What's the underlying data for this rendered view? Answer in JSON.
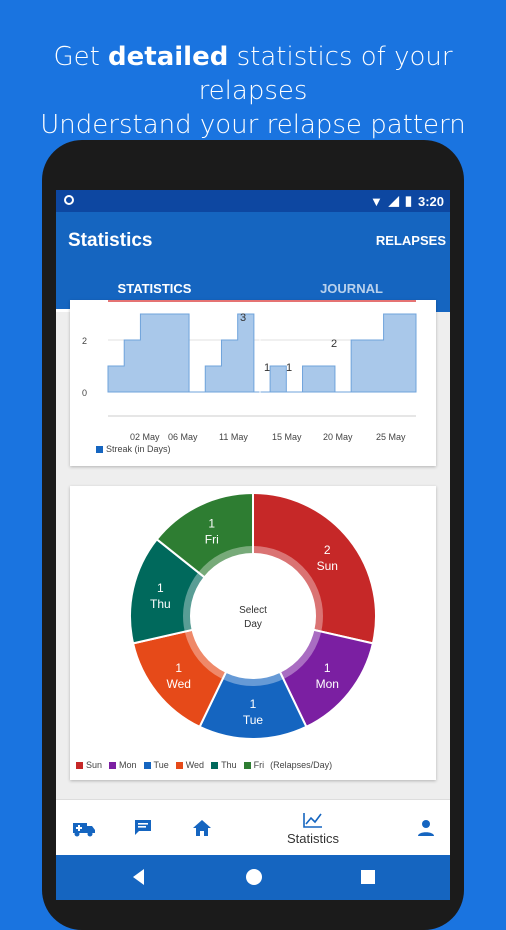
{
  "promo": {
    "line1_pre": "Get ",
    "line1_bold": "detailed",
    "line1_post": " statistics of your relapses",
    "line2": "Understand your relapse pattern"
  },
  "status": {
    "time": "3:20"
  },
  "appbar": {
    "title": "Statistics",
    "action": "RELAPSES"
  },
  "tabs": [
    {
      "label": "STATISTICS",
      "active": true
    },
    {
      "label": "JOURNAL",
      "active": false
    }
  ],
  "streak_chart": {
    "y_ticks": [
      "2",
      "0"
    ],
    "x_ticks": [
      "02 May",
      "06 May",
      "11 May",
      "15 May",
      "20 May",
      "25 May"
    ],
    "point_labels": [
      "3",
      "1",
      "1",
      "2"
    ],
    "legend": "Streak (in Days)",
    "color": "#a9c8ea"
  },
  "donut": {
    "center": [
      "Select",
      "Day"
    ],
    "slices": [
      {
        "day": "Sun",
        "count": "2",
        "color": "#c62828"
      },
      {
        "day": "Mon",
        "count": "1",
        "color": "#7b1fa2"
      },
      {
        "day": "Tue",
        "count": "1",
        "color": "#1565c0"
      },
      {
        "day": "Wed",
        "count": "1",
        "color": "#e64a19"
      },
      {
        "day": "Thu",
        "count": "1",
        "color": "#00695c"
      },
      {
        "day": "Fri",
        "count": "1",
        "color": "#2e7d32"
      }
    ],
    "legend_suffix": "(Relapses/Day)"
  },
  "bottom_nav": {
    "active_label": "Statistics"
  },
  "chart_data": [
    {
      "type": "area",
      "ylabel": "",
      "series": [
        {
          "name": "Streak (in Days)",
          "values": [
            1,
            2,
            3,
            3,
            3,
            0,
            1,
            2,
            3,
            0,
            1,
            0,
            1,
            1,
            0,
            2,
            2,
            3,
            3
          ]
        }
      ],
      "x_ticks": [
        "02 May",
        "06 May",
        "11 May",
        "15 May",
        "20 May",
        "25 May"
      ],
      "ylim": [
        0,
        4
      ]
    },
    {
      "type": "pie",
      "categories": [
        "Sun",
        "Mon",
        "Tue",
        "Wed",
        "Thu",
        "Fri"
      ],
      "values": [
        2,
        1,
        1,
        1,
        1,
        1
      ],
      "ylabel": "(Relapses/Day)"
    }
  ]
}
